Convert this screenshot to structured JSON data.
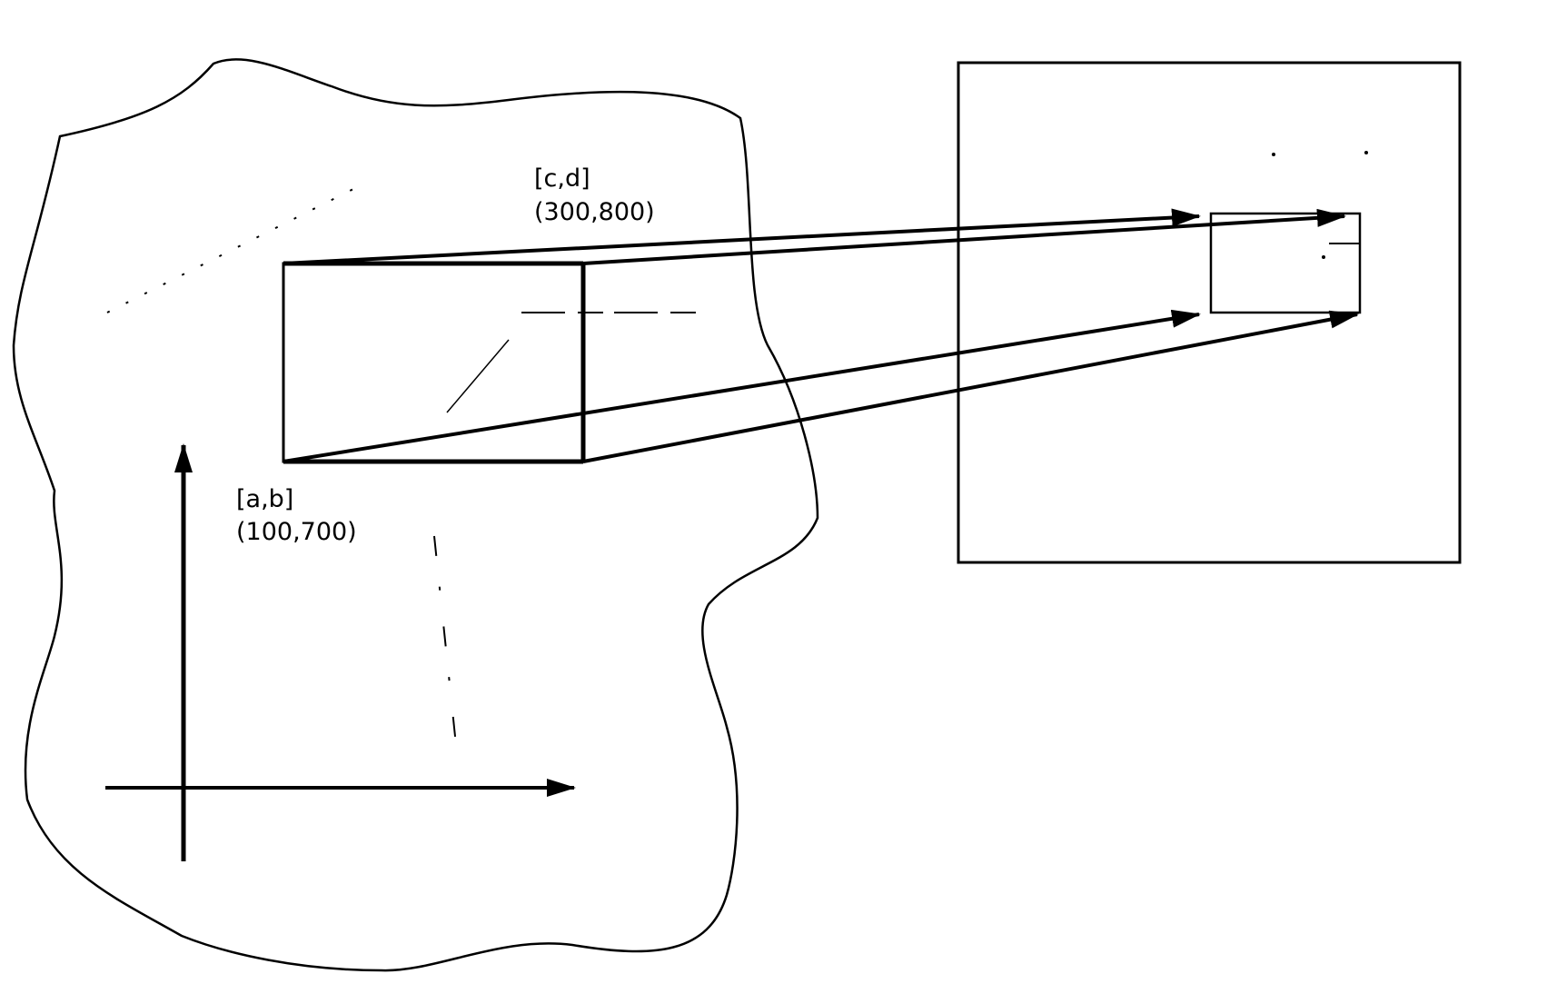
{
  "diagram": {
    "corner_ab": {
      "name": "[a,b]",
      "coords": "(100,700)"
    },
    "corner_cd": {
      "name": "[c,d]",
      "coords": "(300,800)"
    }
  },
  "colors": {
    "ink": "#000000",
    "background": "#ffffff"
  }
}
